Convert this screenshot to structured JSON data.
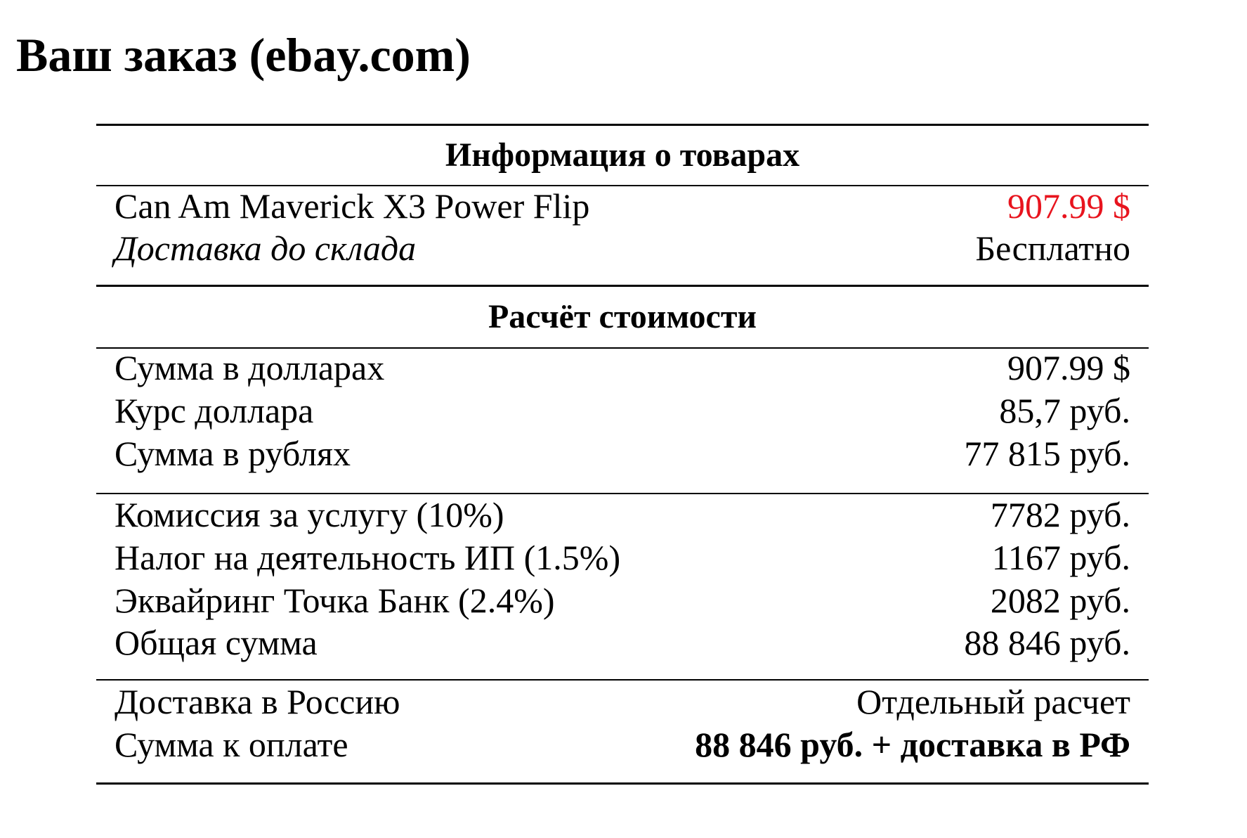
{
  "title": "Ваш заказ (ebay.com)",
  "table": {
    "sections": [
      {
        "header": "Информация о товарах",
        "groups": [
          [
            [
              "Can Am Maverick X3 Power Flip",
              "907.99 $"
            ],
            [
              "Доставка до склада",
              "Бесплатно"
            ]
          ]
        ]
      },
      {
        "header": "Расчёт стоимости",
        "groups": [
          [
            [
              "Сумма в долларах",
              "907.99 $"
            ],
            [
              "Курс доллара",
              "85,7 руб."
            ],
            [
              "Сумма в рублях",
              "77 815 руб."
            ]
          ],
          [
            [
              "Комиссия за услугу (10%)",
              "7782 руб."
            ],
            [
              "Налог на деятельность ИП (1.5%)",
              "1167 руб."
            ],
            [
              "Эквайринг Точка Банк (2.4%)",
              "2082 руб."
            ],
            [
              "Общая сумма",
              "88 846 руб."
            ]
          ],
          [
            [
              "Доставка в Россию",
              "Отдельный расчет"
            ],
            [
              "Сумма к оплате",
              "88 846 руб. + доставка в РФ"
            ]
          ]
        ]
      }
    ]
  }
}
